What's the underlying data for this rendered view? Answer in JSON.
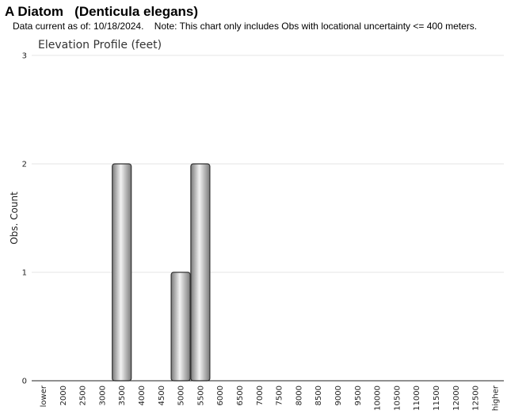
{
  "header": {
    "title": "A Diatom   (Denticula elegans)",
    "note": "Data current as of: 10/18/2024.    Note: This chart only includes Obs with locational uncertainty <= 400 meters."
  },
  "chart_data": {
    "type": "bar",
    "title": "Elevation Profile (feet)",
    "xlabel": "",
    "ylabel": "Obs. Count",
    "categories": [
      "lower",
      "2000",
      "2500",
      "3000",
      "3500",
      "4000",
      "4500",
      "5000",
      "5500",
      "6000",
      "6500",
      "7000",
      "7500",
      "8000",
      "8500",
      "9000",
      "9500",
      "10000",
      "10500",
      "11000",
      "11500",
      "12000",
      "12500",
      "higher"
    ],
    "values": [
      0,
      0,
      0,
      0,
      2,
      0,
      0,
      1,
      2,
      0,
      0,
      0,
      0,
      0,
      0,
      0,
      0,
      0,
      0,
      0,
      0,
      0,
      0,
      0
    ],
    "ylim": [
      0,
      3
    ],
    "yticks": [
      "0",
      "1",
      "2",
      "3"
    ],
    "grid": true,
    "legend": "none",
    "colors": {
      "bar_edge": "#333333",
      "bar_light": "#f2f2f2",
      "bar_dark": "#7a7a7a",
      "grid": "#e6e6e6"
    }
  }
}
